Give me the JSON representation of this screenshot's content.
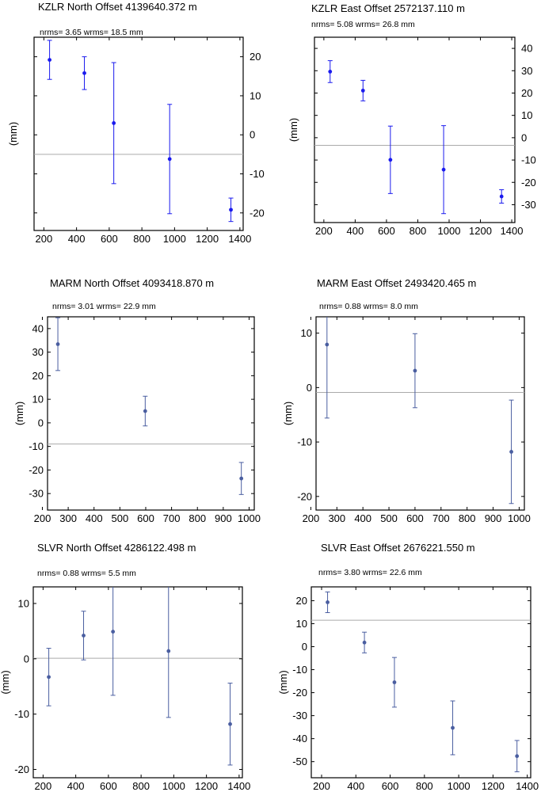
{
  "colors": {
    "blue": "#1a1aee",
    "steel": "#4a5ea0",
    "refline": "#aaaaaa",
    "axis": "#000000"
  },
  "chart_data": [
    {
      "type": "scatter",
      "title": "KZLR  North Offset  4139640.372 m",
      "stats": "nrms=  3.65  wrms=  18.5 mm",
      "ylabel": "(mm)",
      "y_axis_side": "right",
      "color_key": "blue",
      "xlim": [
        140,
        1420
      ],
      "ylim": [
        -24.5,
        25
      ],
      "x_ticks": [
        200,
        400,
        600,
        800,
        1000,
        1200,
        1400
      ],
      "y_ticks": [
        -20,
        -10,
        0,
        10,
        20
      ],
      "reference_line": -5,
      "points": [
        {
          "x": 235,
          "y": 19.2,
          "err": 5.0
        },
        {
          "x": 448,
          "y": 15.8,
          "err": 4.2
        },
        {
          "x": 628,
          "y": 3.0,
          "err": 15.5
        },
        {
          "x": 970,
          "y": -6.2,
          "err": 14.0
        },
        {
          "x": 1345,
          "y": -19.2,
          "err": 3.0
        }
      ]
    },
    {
      "type": "scatter",
      "title": "KZLR  East Offset  2572137.110 m",
      "stats": "nrms=  5.08  wrms=  26.8 mm",
      "ylabel": "(mm)",
      "y_axis_side": "right",
      "color_key": "blue",
      "xlim": [
        140,
        1420
      ],
      "ylim": [
        -38,
        45
      ],
      "x_ticks": [
        200,
        400,
        600,
        800,
        1000,
        1200,
        1400
      ],
      "y_ticks": [
        -30,
        -20,
        -10,
        0,
        10,
        20,
        30,
        40
      ],
      "reference_line": -3.4,
      "points": [
        {
          "x": 240,
          "y": 29.6,
          "err": 4.9
        },
        {
          "x": 450,
          "y": 21.1,
          "err": 4.6
        },
        {
          "x": 625,
          "y": -9.9,
          "err": 15.1
        },
        {
          "x": 965,
          "y": -14.3,
          "err": 19.7
        },
        {
          "x": 1335,
          "y": -26.3,
          "err": 3.0
        }
      ]
    },
    {
      "type": "scatter",
      "title": "MARM  North Offset  4093418.870 m",
      "stats": "nrms=  3.01  wrms=  22.9 mm",
      "ylabel": "(mm)",
      "y_axis_side": "left",
      "color_key": "steel",
      "xlim": [
        220,
        1020
      ],
      "ylim": [
        -37,
        45
      ],
      "x_ticks": [
        200,
        300,
        400,
        500,
        600,
        700,
        800,
        900,
        1000
      ],
      "y_ticks": [
        -30,
        -20,
        -10,
        0,
        10,
        20,
        30,
        40
      ],
      "reference_line": -9,
      "points": [
        {
          "x": 260,
          "y": 33.4,
          "err": 11.2
        },
        {
          "x": 598,
          "y": 5.0,
          "err": 6.3
        },
        {
          "x": 970,
          "y": -23.6,
          "err": 6.8
        }
      ]
    },
    {
      "type": "scatter",
      "title": "MARM  East Offset  2493420.465 m",
      "stats": "nrms=  0.88  wrms=   8.0 mm",
      "ylabel": "(mm)",
      "y_axis_side": "left",
      "color_key": "steel",
      "xlim": [
        220,
        1020
      ],
      "ylim": [
        -22.5,
        13
      ],
      "x_ticks": [
        200,
        300,
        400,
        500,
        600,
        700,
        800,
        900,
        1000
      ],
      "y_ticks": [
        -20,
        -10,
        0,
        10
      ],
      "reference_line": -0.9,
      "points": [
        {
          "x": 262,
          "y": 7.9,
          "err": 13.5
        },
        {
          "x": 600,
          "y": 3.1,
          "err": 6.8
        },
        {
          "x": 970,
          "y": -11.8,
          "err": 9.5
        }
      ]
    },
    {
      "type": "scatter",
      "title": "SLVR  North Offset  4286122.498 m",
      "stats": "nrms=  0.88  wrms=   5.5 mm",
      "ylabel": "(mm)",
      "y_axis_side": "left",
      "color_key": "steel",
      "xlim": [
        140,
        1420
      ],
      "ylim": [
        -21.5,
        13
      ],
      "x_ticks": [
        200,
        400,
        600,
        800,
        1000,
        1200,
        1400
      ],
      "y_ticks": [
        -20,
        -10,
        0,
        10
      ],
      "reference_line": 0.1,
      "points": [
        {
          "x": 235,
          "y": -3.3,
          "err": 5.2
        },
        {
          "x": 448,
          "y": 4.2,
          "err": 4.4
        },
        {
          "x": 628,
          "y": 4.9,
          "err": 11.5
        },
        {
          "x": 968,
          "y": 1.4,
          "err": 12.0
        },
        {
          "x": 1345,
          "y": -11.8,
          "err": 7.4
        }
      ]
    },
    {
      "type": "scatter",
      "title": "SLVR  East Offset  2676221.550 m",
      "stats": "nrms=  3.80  wrms=  22.6 mm",
      "ylabel": "(mm)",
      "y_axis_side": "left",
      "color_key": "steel",
      "xlim": [
        140,
        1420
      ],
      "ylim": [
        -57,
        26
      ],
      "x_ticks": [
        200,
        400,
        600,
        800,
        1000,
        1200,
        1400
      ],
      "y_ticks": [
        -50,
        -40,
        -30,
        -20,
        -10,
        0,
        10,
        20
      ],
      "reference_line": 11.5,
      "points": [
        {
          "x": 235,
          "y": 19.3,
          "err": 4.5
        },
        {
          "x": 450,
          "y": 1.8,
          "err": 4.5
        },
        {
          "x": 625,
          "y": -15.5,
          "err": 10.8
        },
        {
          "x": 965,
          "y": -35.3,
          "err": 11.7
        },
        {
          "x": 1340,
          "y": -47.6,
          "err": 6.8
        }
      ]
    }
  ]
}
